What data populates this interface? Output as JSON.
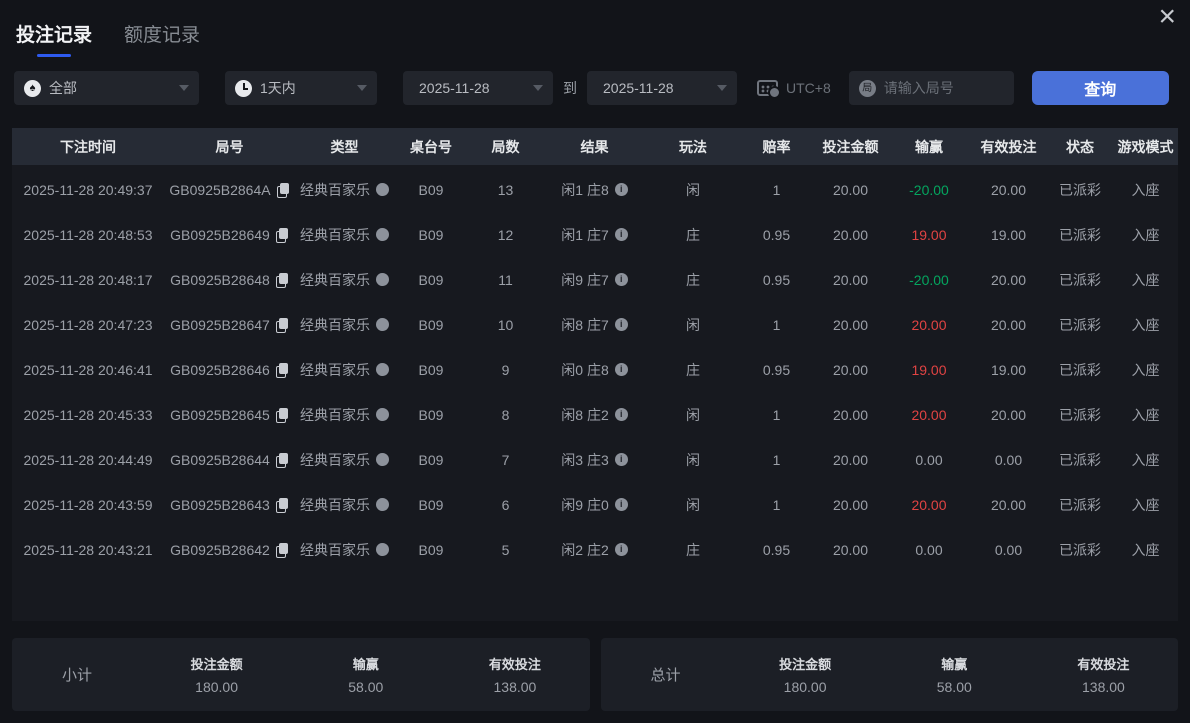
{
  "icons": {
    "spade_char": "♠",
    "info_char": "i",
    "round_badge_char": "局",
    "close_char": "×"
  },
  "colors": {
    "accent_blue": "#4a71d9",
    "tab_underline": "#2e5bf0",
    "win_red": "#e04343",
    "loss_green": "#04a55f"
  },
  "tabs": {
    "bet_records": "投注记录",
    "quota_records": "额度记录"
  },
  "filters": {
    "game_type": {
      "value": "全部"
    },
    "time_range": {
      "value": "1天内"
    },
    "date_from": "2025-11-28",
    "to_label": "到",
    "date_to": "2025-11-28",
    "timezone_label": "UTC+8",
    "round_input": {
      "placeholder": "请输入局号",
      "value": ""
    },
    "search_button": "查询"
  },
  "table": {
    "headers": [
      "下注时间",
      "局号",
      "类型",
      "桌台号",
      "局数",
      "结果",
      "玩法",
      "赔率",
      "投注金额",
      "输赢",
      "有效投注",
      "状态",
      "游戏模式"
    ],
    "rows": [
      {
        "time": "2025-11-28 20:49:37",
        "round_id": "GB0925B2864A",
        "type": "经典百家乐",
        "table_no": "B09",
        "round_no": "13",
        "result": "闲1 庄8",
        "play": "闲",
        "odds": "1",
        "amount": "20.00",
        "win_loss": "-20.00",
        "win_loss_color": "green",
        "valid": "20.00",
        "status": "已派彩",
        "mode": "入座"
      },
      {
        "time": "2025-11-28 20:48:53",
        "round_id": "GB0925B28649",
        "type": "经典百家乐",
        "table_no": "B09",
        "round_no": "12",
        "result": "闲1 庄7",
        "play": "庄",
        "odds": "0.95",
        "amount": "20.00",
        "win_loss": "19.00",
        "win_loss_color": "red",
        "valid": "19.00",
        "status": "已派彩",
        "mode": "入座"
      },
      {
        "time": "2025-11-28 20:48:17",
        "round_id": "GB0925B28648",
        "type": "经典百家乐",
        "table_no": "B09",
        "round_no": "11",
        "result": "闲9 庄7",
        "play": "庄",
        "odds": "0.95",
        "amount": "20.00",
        "win_loss": "-20.00",
        "win_loss_color": "green",
        "valid": "20.00",
        "status": "已派彩",
        "mode": "入座"
      },
      {
        "time": "2025-11-28 20:47:23",
        "round_id": "GB0925B28647",
        "type": "经典百家乐",
        "table_no": "B09",
        "round_no": "10",
        "result": "闲8 庄7",
        "play": "闲",
        "odds": "1",
        "amount": "20.00",
        "win_loss": "20.00",
        "win_loss_color": "red",
        "valid": "20.00",
        "status": "已派彩",
        "mode": "入座"
      },
      {
        "time": "2025-11-28 20:46:41",
        "round_id": "GB0925B28646",
        "type": "经典百家乐",
        "table_no": "B09",
        "round_no": "9",
        "result": "闲0 庄8",
        "play": "庄",
        "odds": "0.95",
        "amount": "20.00",
        "win_loss": "19.00",
        "win_loss_color": "red",
        "valid": "19.00",
        "status": "已派彩",
        "mode": "入座"
      },
      {
        "time": "2025-11-28 20:45:33",
        "round_id": "GB0925B28645",
        "type": "经典百家乐",
        "table_no": "B09",
        "round_no": "8",
        "result": "闲8 庄2",
        "play": "闲",
        "odds": "1",
        "amount": "20.00",
        "win_loss": "20.00",
        "win_loss_color": "red",
        "valid": "20.00",
        "status": "已派彩",
        "mode": "入座"
      },
      {
        "time": "2025-11-28 20:44:49",
        "round_id": "GB0925B28644",
        "type": "经典百家乐",
        "table_no": "B09",
        "round_no": "7",
        "result": "闲3 庄3",
        "play": "闲",
        "odds": "1",
        "amount": "20.00",
        "win_loss": "0.00",
        "win_loss_color": "none",
        "valid": "0.00",
        "status": "已派彩",
        "mode": "入座"
      },
      {
        "time": "2025-11-28 20:43:59",
        "round_id": "GB0925B28643",
        "type": "经典百家乐",
        "table_no": "B09",
        "round_no": "6",
        "result": "闲9 庄0",
        "play": "闲",
        "odds": "1",
        "amount": "20.00",
        "win_loss": "20.00",
        "win_loss_color": "red",
        "valid": "20.00",
        "status": "已派彩",
        "mode": "入座"
      },
      {
        "time": "2025-11-28 20:43:21",
        "round_id": "GB0925B28642",
        "type": "经典百家乐",
        "table_no": "B09",
        "round_no": "5",
        "result": "闲2 庄2",
        "play": "庄",
        "odds": "0.95",
        "amount": "20.00",
        "win_loss": "0.00",
        "win_loss_color": "none",
        "valid": "0.00",
        "status": "已派彩",
        "mode": "入座"
      }
    ]
  },
  "summary": {
    "subtotal": {
      "label": "小计",
      "amount_label": "投注金额",
      "amount": "180.00",
      "winloss_label": "输赢",
      "winloss": "58.00",
      "valid_label": "有效投注",
      "valid": "138.00"
    },
    "total": {
      "label": "总计",
      "amount_label": "投注金额",
      "amount": "180.00",
      "winloss_label": "输赢",
      "winloss": "58.00",
      "valid_label": "有效投注",
      "valid": "138.00"
    }
  }
}
